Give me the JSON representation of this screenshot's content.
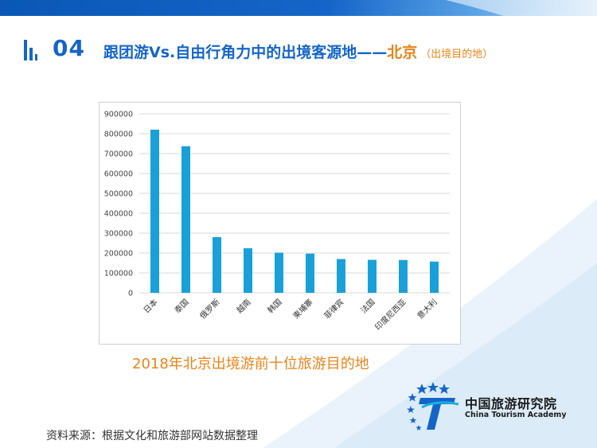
{
  "header": {
    "section_number": "04",
    "title_main": "跟团游Vs.自由行角力中的出境客源地——",
    "title_city": "北京",
    "title_note": "（出境目的地）"
  },
  "chart_data": {
    "type": "bar",
    "title": "2018年北京出境游前十位旅游目的地",
    "categories": [
      "日本",
      "泰国",
      "俄罗斯",
      "越南",
      "韩国",
      "柬埔寨",
      "菲律宾",
      "法国",
      "印度尼西亚",
      "意大利"
    ],
    "values": [
      820000,
      737000,
      280000,
      224000,
      202000,
      197000,
      170000,
      166000,
      165000,
      157000
    ],
    "ylim": [
      0,
      900000
    ],
    "yticks": [
      "0",
      "100000",
      "200000",
      "300000",
      "400000",
      "500000",
      "600000",
      "700000",
      "800000",
      "900000"
    ],
    "grid": true,
    "bar_color": "#1aa0d8"
  },
  "footer": {
    "source": "资料来源：根据文化和旅游部网站数据整理"
  },
  "logo": {
    "name_cn": "中国旅游研究院",
    "name_en": "China Tourism Academy"
  },
  "colors": {
    "brand_blue": "#1565c8",
    "accent_orange": "#e8841a"
  }
}
